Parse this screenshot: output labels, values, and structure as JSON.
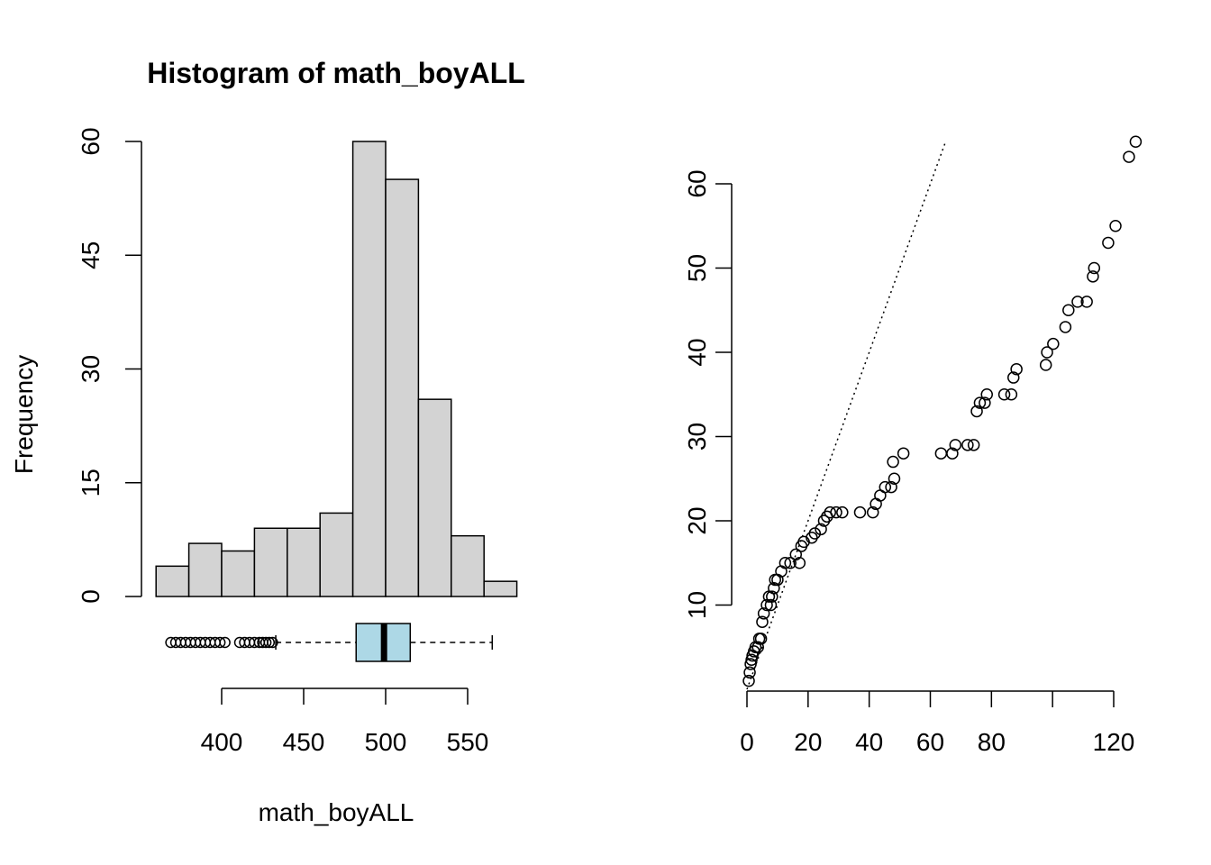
{
  "chart_data": [
    {
      "type": "bar",
      "title": "Histogram of math_boyALL",
      "xlabel": "math_boyALL",
      "ylabel": "Frequency",
      "bin_edges": [
        360,
        380,
        400,
        420,
        440,
        460,
        480,
        500,
        520,
        540,
        560,
        580
      ],
      "values": [
        4,
        7,
        6,
        9,
        9,
        11,
        60,
        55,
        26,
        8,
        2
      ],
      "x_ticks": [
        400,
        450,
        500,
        550
      ],
      "y_ticks": [
        0,
        15,
        30,
        45,
        60
      ],
      "ylim": [
        0,
        60
      ],
      "bar_color": "#d3d3d3",
      "grid": false
    },
    {
      "type": "box",
      "orientation": "horizontal",
      "q1": 482,
      "median": 499,
      "q3": 515,
      "whisker_low": 433,
      "whisker_high": 565,
      "outliers": [
        369,
        372,
        375,
        378,
        381,
        384,
        387,
        390,
        393,
        396,
        399,
        402,
        411,
        414,
        417,
        420,
        423,
        425,
        427,
        429,
        431
      ],
      "box_color": "#add8e6"
    },
    {
      "type": "scatter",
      "title": "",
      "xlabel": "",
      "ylabel": "",
      "x_ticks": [
        0,
        20,
        40,
        60,
        80,
        120
      ],
      "y_ticks": [
        10,
        20,
        30,
        40,
        50,
        60
      ],
      "xlim": [
        0,
        127
      ],
      "ylim": [
        0,
        65
      ],
      "points": [
        [
          0.6,
          1
        ],
        [
          0.9,
          2
        ],
        [
          1.2,
          3
        ],
        [
          1.5,
          3.5
        ],
        [
          1.8,
          4
        ],
        [
          2.3,
          4.5
        ],
        [
          2.8,
          5
        ],
        [
          3.6,
          5
        ],
        [
          4.0,
          6
        ],
        [
          4.6,
          6
        ],
        [
          5.0,
          8
        ],
        [
          5.5,
          9
        ],
        [
          6.5,
          10
        ],
        [
          7.2,
          11
        ],
        [
          8.2,
          11
        ],
        [
          8.8,
          12
        ],
        [
          7.8,
          10
        ],
        [
          9.2,
          13
        ],
        [
          10.0,
          13
        ],
        [
          11.2,
          14
        ],
        [
          12.5,
          15
        ],
        [
          14.2,
          15
        ],
        [
          16.0,
          16
        ],
        [
          17.2,
          15
        ],
        [
          17.8,
          17
        ],
        [
          18.6,
          17.5
        ],
        [
          21.2,
          18
        ],
        [
          22.2,
          18.5
        ],
        [
          24.2,
          19
        ],
        [
          25.2,
          20
        ],
        [
          26.2,
          20.5
        ],
        [
          27.2,
          21
        ],
        [
          29.2,
          21
        ],
        [
          31.2,
          21
        ],
        [
          37.0,
          21
        ],
        [
          41.2,
          21
        ],
        [
          42.2,
          22
        ],
        [
          43.6,
          23
        ],
        [
          45.2,
          24
        ],
        [
          47.2,
          24
        ],
        [
          48.2,
          25
        ],
        [
          47.8,
          27
        ],
        [
          51.2,
          28
        ],
        [
          63.5,
          28
        ],
        [
          67.2,
          28
        ],
        [
          68.2,
          29
        ],
        [
          72.2,
          29
        ],
        [
          74.2,
          29
        ],
        [
          75.2,
          33
        ],
        [
          76.2,
          34
        ],
        [
          77.8,
          34
        ],
        [
          78.5,
          35
        ],
        [
          84.2,
          35
        ],
        [
          86.5,
          35
        ],
        [
          87.2,
          37
        ],
        [
          88.2,
          38
        ],
        [
          97.8,
          38.5
        ],
        [
          98.2,
          40
        ],
        [
          100.2,
          41
        ],
        [
          104.2,
          43
        ],
        [
          105.2,
          45
        ],
        [
          108.2,
          46
        ],
        [
          111.2,
          46
        ],
        [
          113.2,
          49
        ],
        [
          113.6,
          50
        ],
        [
          118.2,
          53
        ],
        [
          120.6,
          55
        ],
        [
          125.0,
          63.2
        ],
        [
          127.2,
          65
        ]
      ],
      "reference_line": {
        "intercept": 0,
        "slope": 1
      }
    }
  ]
}
